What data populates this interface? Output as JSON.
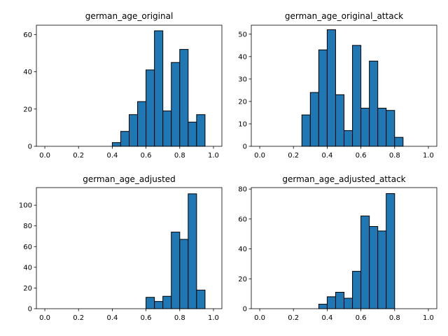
{
  "colors": {
    "bar_fill": "#1f77b4",
    "bar_edge": "#000000"
  },
  "chart_data": [
    {
      "type": "bar",
      "title": "german_age_original",
      "xlim": [
        -0.05,
        1.05
      ],
      "ylim": [
        0,
        65
      ],
      "xticks": [
        0.0,
        0.2,
        0.4,
        0.6,
        0.8,
        1.0
      ],
      "xtick_labels": [
        "0.0",
        "0.2",
        "0.4",
        "0.6",
        "0.8",
        "1.0"
      ],
      "yticks": [
        0,
        20,
        40,
        60
      ],
      "ytick_labels": [
        "0",
        "20",
        "40",
        "60"
      ],
      "bin_edges": [
        0.0,
        0.05,
        0.1,
        0.15,
        0.2,
        0.25,
        0.3,
        0.35,
        0.4,
        0.45,
        0.5,
        0.55,
        0.6,
        0.65,
        0.7,
        0.75,
        0.8,
        0.85,
        0.9,
        0.95,
        1.0
      ],
      "values": [
        0,
        0,
        0,
        0,
        0,
        0,
        0,
        0,
        2,
        8,
        17,
        24,
        41,
        62,
        19,
        45,
        52,
        13,
        17,
        0
      ]
    },
    {
      "type": "bar",
      "title": "german_age_original_attack",
      "xlim": [
        -0.05,
        1.05
      ],
      "ylim": [
        0,
        54
      ],
      "xticks": [
        0.0,
        0.2,
        0.4,
        0.6,
        0.8,
        1.0
      ],
      "xtick_labels": [
        "0.0",
        "0.2",
        "0.4",
        "0.6",
        "0.8",
        "1.0"
      ],
      "yticks": [
        0,
        10,
        20,
        30,
        40,
        50
      ],
      "ytick_labels": [
        "0",
        "10",
        "20",
        "30",
        "40",
        "50"
      ],
      "bin_edges": [
        0.0,
        0.05,
        0.1,
        0.15,
        0.2,
        0.25,
        0.3,
        0.35,
        0.4,
        0.45,
        0.5,
        0.55,
        0.6,
        0.65,
        0.7,
        0.75,
        0.8,
        0.85,
        0.9,
        0.95,
        1.0
      ],
      "values": [
        0,
        0,
        0,
        0,
        0,
        14,
        24,
        43,
        52,
        23,
        7,
        45,
        17,
        38,
        17,
        16,
        4,
        0,
        0,
        0
      ]
    },
    {
      "type": "bar",
      "title": "german_age_adjusted",
      "xlim": [
        -0.05,
        1.05
      ],
      "ylim": [
        0,
        117
      ],
      "xticks": [
        0.0,
        0.2,
        0.4,
        0.6,
        0.8,
        1.0
      ],
      "xtick_labels": [
        "0.0",
        "0.2",
        "0.4",
        "0.6",
        "0.8",
        "1.0"
      ],
      "yticks": [
        0,
        20,
        40,
        60,
        80,
        100
      ],
      "ytick_labels": [
        "0",
        "20",
        "40",
        "60",
        "80",
        "100"
      ],
      "bin_edges": [
        0.0,
        0.05,
        0.1,
        0.15,
        0.2,
        0.25,
        0.3,
        0.35,
        0.4,
        0.45,
        0.5,
        0.55,
        0.6,
        0.65,
        0.7,
        0.75,
        0.8,
        0.85,
        0.9,
        0.95,
        1.0
      ],
      "values": [
        0,
        0,
        0,
        0,
        0,
        0,
        0,
        0,
        0,
        0,
        0,
        0,
        11,
        7,
        12,
        74,
        67,
        111,
        18,
        0
      ]
    },
    {
      "type": "bar",
      "title": "german_age_adjusted_attack",
      "xlim": [
        -0.05,
        1.05
      ],
      "ylim": [
        0,
        81
      ],
      "xticks": [
        0.0,
        0.2,
        0.4,
        0.6,
        0.8,
        1.0
      ],
      "xtick_labels": [
        "0.0",
        "0.2",
        "0.4",
        "0.6",
        "0.8",
        "1.0"
      ],
      "yticks": [
        0,
        20,
        40,
        60,
        80
      ],
      "ytick_labels": [
        "0",
        "20",
        "40",
        "60",
        "80"
      ],
      "bin_edges": [
        0.0,
        0.05,
        0.1,
        0.15,
        0.2,
        0.25,
        0.3,
        0.35,
        0.4,
        0.45,
        0.5,
        0.55,
        0.6,
        0.65,
        0.7,
        0.75,
        0.8,
        0.85,
        0.9,
        0.95,
        1.0
      ],
      "values": [
        0,
        0,
        0,
        0,
        0,
        0,
        0,
        3,
        8,
        11,
        7,
        25,
        62,
        55,
        52,
        77,
        0,
        0,
        0,
        0
      ]
    }
  ]
}
